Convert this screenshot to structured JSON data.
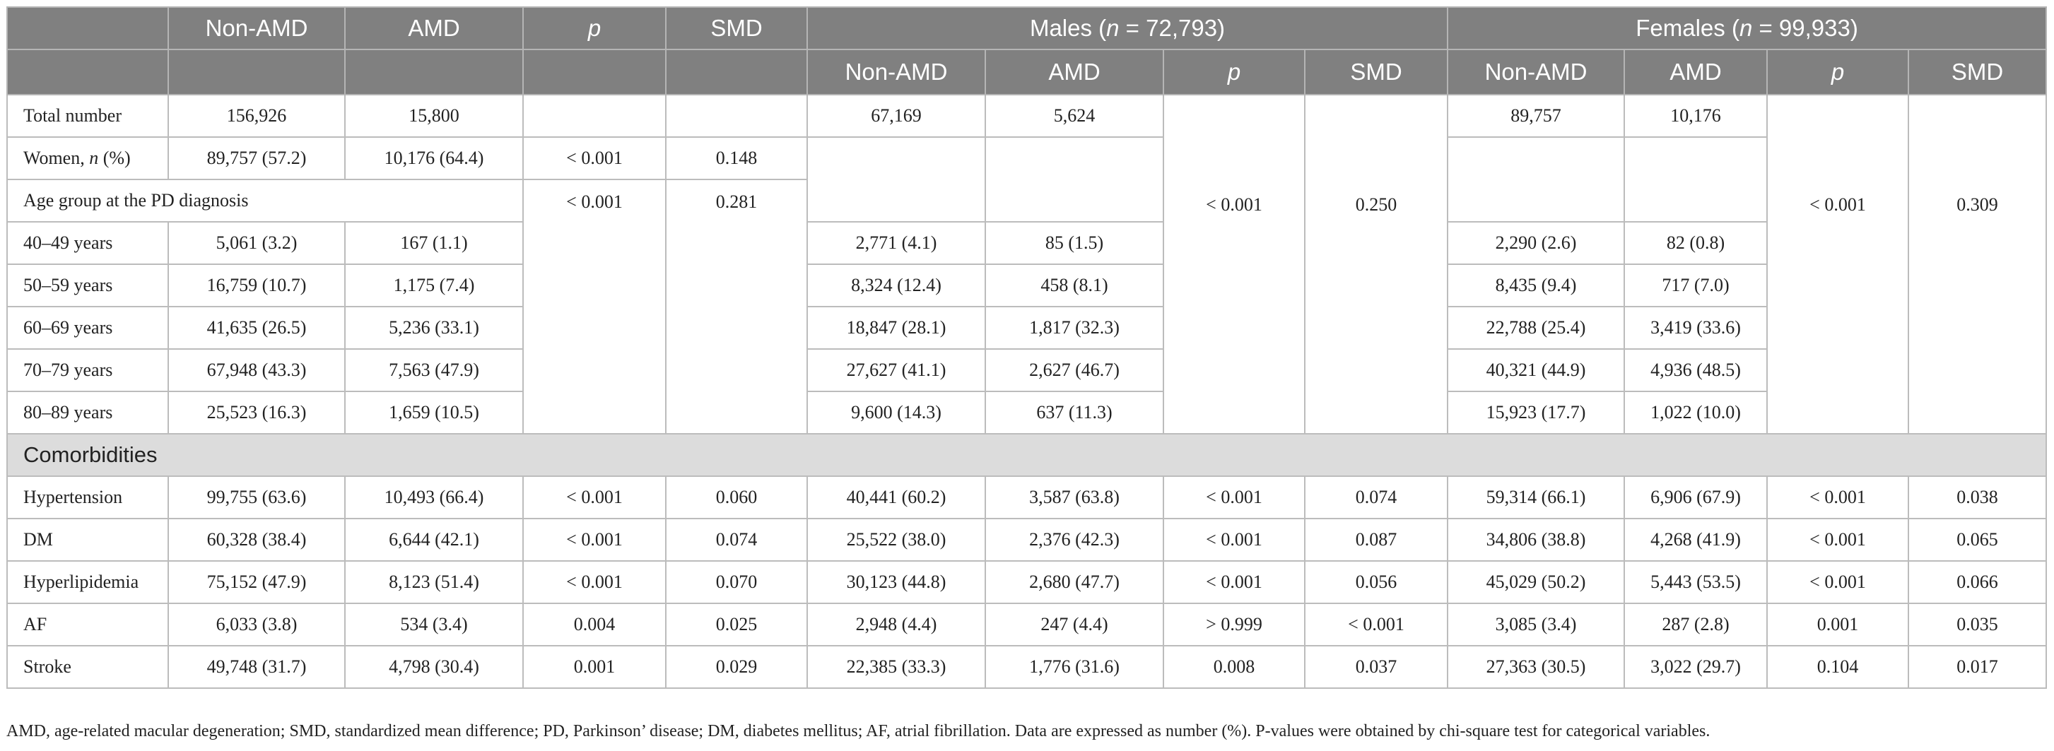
{
  "header": {
    "top": [
      "Non-AMD",
      "AMD",
      "p",
      "SMD"
    ],
    "groups": [
      {
        "prefix": "Males (",
        "italic": "n",
        "suffix": " = 72,793)"
      },
      {
        "prefix": "Females (",
        "italic": "n",
        "suffix": " = 99,933)"
      }
    ],
    "sub": [
      "Non-AMD",
      "AMD",
      "p",
      "SMD",
      "Non-AMD",
      "AMD",
      "p",
      "SMD"
    ]
  },
  "rows": {
    "total": {
      "label": "Total number",
      "cells": [
        "156,926",
        "15,800",
        "67,169",
        "5,624",
        "89,757",
        "10,176"
      ]
    },
    "women": {
      "label": {
        "prefix": "Women, ",
        "italic": "n",
        "suffix": " (%)"
      },
      "cells": [
        "89,757 (57.2)",
        "10,176 (64.4)",
        "< 0.001",
        "0.148"
      ]
    },
    "age_group": {
      "label": "Age group at the PD diagnosis",
      "p": "< 0.001",
      "smd": "0.281",
      "males_p": "< 0.001",
      "males_smd": "0.250",
      "females_p": "< 0.001",
      "females_smd": "0.309"
    },
    "ages": [
      {
        "label": "40–49 years",
        "cells": [
          "5,061 (3.2)",
          "167 (1.1)",
          "2,771 (4.1)",
          "85 (1.5)",
          "2,290 (2.6)",
          "82 (0.8)"
        ]
      },
      {
        "label": "50–59 years",
        "cells": [
          "16,759 (10.7)",
          "1,175 (7.4)",
          "8,324 (12.4)",
          "458 (8.1)",
          "8,435 (9.4)",
          "717 (7.0)"
        ]
      },
      {
        "label": "60–69 years",
        "cells": [
          "41,635 (26.5)",
          "5,236 (33.1)",
          "18,847 (28.1)",
          "1,817 (32.3)",
          "22,788 (25.4)",
          "3,419 (33.6)"
        ]
      },
      {
        "label": "70–79 years",
        "cells": [
          "67,948 (43.3)",
          "7,563 (47.9)",
          "27,627 (41.1)",
          "2,627 (46.7)",
          "40,321 (44.9)",
          "4,936 (48.5)"
        ]
      },
      {
        "label": "80–89 years",
        "cells": [
          "25,523 (16.3)",
          "1,659 (10.5)",
          "9,600 (14.3)",
          "637 (11.3)",
          "15,923 (17.7)",
          "1,022 (10.0)"
        ]
      }
    ],
    "section": "Comorbidities",
    "comorbidities": [
      {
        "label": "Hypertension",
        "cells": [
          "99,755 (63.6)",
          "10,493 (66.4)",
          "< 0.001",
          "0.060",
          "40,441 (60.2)",
          "3,587 (63.8)",
          "< 0.001",
          "0.074",
          "59,314 (66.1)",
          "6,906 (67.9)",
          "< 0.001",
          "0.038"
        ]
      },
      {
        "label": "DM",
        "cells": [
          "60,328 (38.4)",
          "6,644 (42.1)",
          "< 0.001",
          "0.074",
          "25,522 (38.0)",
          "2,376 (42.3)",
          "< 0.001",
          "0.087",
          "34,806 (38.8)",
          "4,268 (41.9)",
          "< 0.001",
          "0.065"
        ]
      },
      {
        "label": "Hyperlipidemia",
        "cells": [
          "75,152 (47.9)",
          "8,123 (51.4)",
          "< 0.001",
          "0.070",
          "30,123 (44.8)",
          "2,680 (47.7)",
          "< 0.001",
          "0.056",
          "45,029 (50.2)",
          "5,443 (53.5)",
          "< 0.001",
          "0.066"
        ]
      },
      {
        "label": "AF",
        "cells": [
          "6,033 (3.8)",
          "534 (3.4)",
          "0.004",
          "0.025",
          "2,948 (4.4)",
          "247 (4.4)",
          "> 0.999",
          "< 0.001",
          "3,085 (3.4)",
          "287 (2.8)",
          "0.001",
          "0.035"
        ]
      },
      {
        "label": "Stroke",
        "cells": [
          "49,748 (31.7)",
          "4,798 (30.4)",
          "0.001",
          "0.029",
          "22,385 (33.3)",
          "1,776 (31.6)",
          "0.008",
          "0.037",
          "27,363 (30.5)",
          "3,022 (29.7)",
          "0.104",
          "0.017"
        ]
      }
    ]
  },
  "footnote": "AMD, age-related macular degeneration; SMD, standardized mean difference; PD, Parkinson’ disease; DM, diabetes mellitus; AF, atrial fibrillation. Data are expressed as number (%). P-values were obtained by chi-square test for categorical variables."
}
